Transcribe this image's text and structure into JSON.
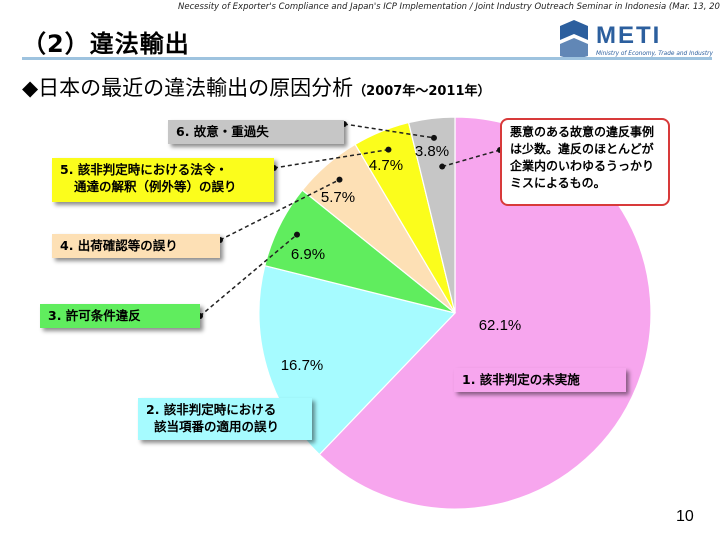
{
  "header_note": "Necessity of Exporter's Compliance and Japan's ICP Implementation / Joint Industry Outreach Seminar in Indonesia (Mar. 13, 2013)",
  "section_title": "（2）違法輸出",
  "logo": {
    "text": "METI",
    "subtitle": "Ministry of Economy, Trade and Industry"
  },
  "subtitle": {
    "main": "◆日本の最近の違法輸出の原因分析",
    "period": "（2007年～2011年）"
  },
  "note": "悪意のある故意の違反事例は少数。違反のほとんどが企業内のいわゆるうっかりミスによるもの。",
  "page_number": "10",
  "colors": {
    "accent_blue": "#2c5f9e",
    "note_border": "#d83a3a"
  },
  "chart_data": {
    "type": "pie",
    "start_angle_deg": 0,
    "direction": "clockwise",
    "slices": [
      {
        "label": "1. 該非判定の未実施",
        "value": 62.1,
        "value_label": "62.1%",
        "color": "#f7a6ee"
      },
      {
        "label": "2. 該非判定時における該当項番の適用の誤り",
        "value": 16.7,
        "value_label": "16.7%",
        "color": "#a6fbff"
      },
      {
        "label": "3. 許可条件違反",
        "value": 6.9,
        "value_label": "6.9%",
        "color": "#60ed5e"
      },
      {
        "label": "4. 出荷確認等の誤り",
        "value": 5.7,
        "value_label": "5.7%",
        "color": "#fde0b5"
      },
      {
        "label": "5. 該非判定時における法令・通達の解釈（例外等）の誤り",
        "value": 4.7,
        "value_label": "4.7%",
        "color": "#fbfd1c"
      },
      {
        "label": "6. 故意・重過失",
        "value": 3.8,
        "value_label": "3.8%",
        "color": "#c6c6c6"
      }
    ],
    "callout_labels": {
      "s1": "1. 該非判定の未実施",
      "s2_line1": "2. 該非判定時における",
      "s2_line2": "該当項番の適用の誤り",
      "s3": "3. 許可条件違反",
      "s4": "4. 出荷確認等の誤り",
      "s5_line1": "5. 該非判定時における法令・",
      "s5_line2": "通達の解釈（例外等）の誤り",
      "s6": "6. 故意・重過失"
    },
    "title": "",
    "legend": "none"
  }
}
